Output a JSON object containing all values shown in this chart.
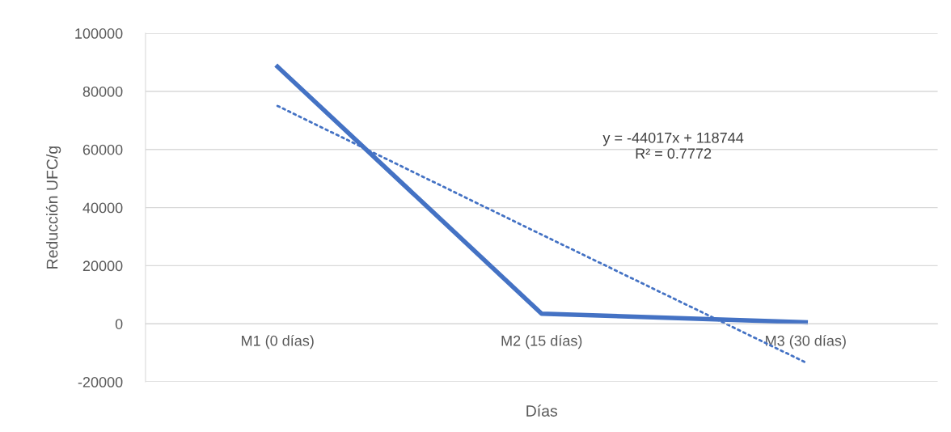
{
  "chart_data": {
    "type": "line",
    "xlabel": "Días",
    "ylabel": "Reducción UFC/g",
    "categories": [
      "M1 (0 días)",
      "M2 (15 días)",
      "M3 (30 días)"
    ],
    "series": [
      {
        "color": "#4472c4",
        "values": [
          88500,
          3500,
          500
        ],
        "line_style": "solid"
      },
      {
        "type": "line",
        "color": "#4472c4",
        "values": [
          75000,
          30700,
          -13300
        ],
        "line_style": "dotted"
      }
    ],
    "ylim": [
      -20000,
      100000
    ],
    "yticks": [
      -20000,
      0,
      20000,
      40000,
      60000,
      80000,
      100000
    ],
    "grid": "y",
    "legend": false,
    "marker": "none",
    "annotations": [
      "y = -44017x + 118744\nR² = 0.7772"
    ]
  }
}
